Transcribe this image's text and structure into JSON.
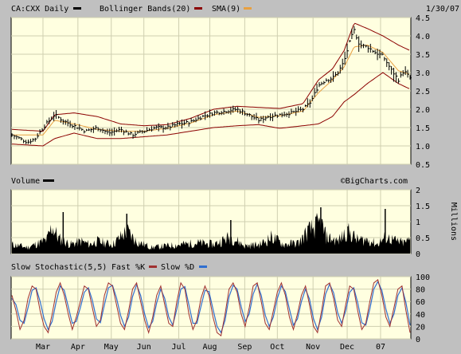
{
  "chart_data": [
    {
      "type": "candlestick",
      "panel": "price",
      "legend": {
        "symbol": "CA:CXX Daily",
        "bands": "Bollinger Bands(20)",
        "sma": "SMA(9)"
      },
      "date": "1/30/07",
      "x_labels": [
        "Mar",
        "Apr",
        "May",
        "Jun",
        "Jul",
        "Aug",
        "Sep",
        "Oct",
        "Nov",
        "Dec",
        "07"
      ],
      "y_ticks": [
        "4.5",
        "4.0",
        "3.5",
        "3.0",
        "2.5",
        "2.0",
        "1.5",
        "1.0",
        "0.5"
      ],
      "ylim": [
        0.5,
        4.5
      ],
      "grid": true,
      "colors": {
        "price": "#000000",
        "bands": "#8b0000",
        "sma": "#e8a040",
        "background": "#ffffe0"
      },
      "close_anchors": [
        [
          0,
          1.3
        ],
        [
          10,
          1.2
        ],
        [
          20,
          1.1
        ],
        [
          30,
          1.2
        ],
        [
          42,
          1.55
        ],
        [
          55,
          1.85
        ],
        [
          65,
          1.7
        ],
        [
          80,
          1.55
        ],
        [
          95,
          1.4
        ],
        [
          110,
          1.5
        ],
        [
          125,
          1.35
        ],
        [
          140,
          1.45
        ],
        [
          155,
          1.3
        ],
        [
          170,
          1.4
        ],
        [
          185,
          1.5
        ],
        [
          200,
          1.5
        ],
        [
          215,
          1.6
        ],
        [
          230,
          1.65
        ],
        [
          245,
          1.8
        ],
        [
          260,
          1.9
        ],
        [
          275,
          1.95
        ],
        [
          290,
          2.0
        ],
        [
          305,
          1.85
        ],
        [
          318,
          1.7
        ],
        [
          330,
          1.8
        ],
        [
          345,
          1.85
        ],
        [
          360,
          1.9
        ],
        [
          375,
          2.0
        ],
        [
          385,
          2.2
        ],
        [
          395,
          2.65
        ],
        [
          405,
          2.8
        ],
        [
          413,
          2.85
        ],
        [
          420,
          3.0
        ],
        [
          428,
          3.3
        ],
        [
          436,
          3.9
        ],
        [
          441,
          4.15
        ],
        [
          448,
          3.75
        ],
        [
          458,
          3.7
        ],
        [
          468,
          3.55
        ],
        [
          478,
          3.45
        ],
        [
          488,
          3.1
        ],
        [
          498,
          2.8
        ],
        [
          505,
          3.05
        ],
        [
          513,
          2.85
        ]
      ],
      "sma_anchors": [
        [
          0,
          1.3
        ],
        [
          40,
          1.3
        ],
        [
          55,
          1.7
        ],
        [
          80,
          1.6
        ],
        [
          110,
          1.45
        ],
        [
          140,
          1.4
        ],
        [
          170,
          1.4
        ],
        [
          200,
          1.48
        ],
        [
          230,
          1.62
        ],
        [
          260,
          1.85
        ],
        [
          290,
          1.95
        ],
        [
          318,
          1.78
        ],
        [
          345,
          1.82
        ],
        [
          375,
          1.95
        ],
        [
          395,
          2.45
        ],
        [
          413,
          2.8
        ],
        [
          428,
          3.15
        ],
        [
          441,
          3.7
        ],
        [
          458,
          3.75
        ],
        [
          478,
          3.55
        ],
        [
          498,
          3.05
        ],
        [
          513,
          2.95
        ]
      ],
      "upper_band_anchors": [
        [
          0,
          1.45
        ],
        [
          40,
          1.4
        ],
        [
          55,
          1.85
        ],
        [
          80,
          1.9
        ],
        [
          110,
          1.8
        ],
        [
          140,
          1.6
        ],
        [
          170,
          1.55
        ],
        [
          200,
          1.58
        ],
        [
          230,
          1.75
        ],
        [
          260,
          2.0
        ],
        [
          290,
          2.08
        ],
        [
          318,
          2.05
        ],
        [
          345,
          2.02
        ],
        [
          375,
          2.15
        ],
        [
          395,
          2.8
        ],
        [
          413,
          3.1
        ],
        [
          428,
          3.6
        ],
        [
          441,
          4.35
        ],
        [
          458,
          4.2
        ],
        [
          478,
          4.0
        ],
        [
          498,
          3.75
        ],
        [
          513,
          3.6
        ]
      ],
      "lower_band_anchors": [
        [
          0,
          1.05
        ],
        [
          40,
          1.0
        ],
        [
          55,
          1.2
        ],
        [
          80,
          1.35
        ],
        [
          110,
          1.2
        ],
        [
          140,
          1.2
        ],
        [
          170,
          1.25
        ],
        [
          200,
          1.3
        ],
        [
          230,
          1.4
        ],
        [
          260,
          1.5
        ],
        [
          290,
          1.55
        ],
        [
          318,
          1.58
        ],
        [
          345,
          1.48
        ],
        [
          375,
          1.55
        ],
        [
          395,
          1.6
        ],
        [
          413,
          1.8
        ],
        [
          428,
          2.2
        ],
        [
          441,
          2.4
        ],
        [
          458,
          2.7
        ],
        [
          478,
          3.0
        ],
        [
          498,
          2.7
        ],
        [
          513,
          2.55
        ]
      ]
    },
    {
      "type": "bar",
      "panel": "volume",
      "label": "Volume",
      "watermark": "©BigCharts.com",
      "y_ticks": [
        "2",
        "1.5",
        "1",
        "0.5",
        "0"
      ],
      "unit_label": "Millions",
      "ylim": [
        0,
        2
      ],
      "color": "#000000",
      "volume_anchors": [
        [
          0,
          0.3
        ],
        [
          20,
          0.2
        ],
        [
          45,
          0.45
        ],
        [
          52,
          0.9
        ],
        [
          60,
          0.5
        ],
        [
          75,
          0.3
        ],
        [
          90,
          0.4
        ],
        [
          100,
          0.3
        ],
        [
          110,
          0.4
        ],
        [
          130,
          0.3
        ],
        [
          148,
          0.75
        ],
        [
          160,
          0.4
        ],
        [
          180,
          0.2
        ],
        [
          200,
          0.25
        ],
        [
          220,
          0.3
        ],
        [
          240,
          0.35
        ],
        [
          260,
          0.3
        ],
        [
          282,
          0.55
        ],
        [
          300,
          0.25
        ],
        [
          320,
          0.3
        ],
        [
          335,
          0.55
        ],
        [
          350,
          0.3
        ],
        [
          370,
          0.35
        ],
        [
          380,
          0.7
        ],
        [
          398,
          1.0
        ],
        [
          405,
          0.55
        ],
        [
          420,
          0.4
        ],
        [
          432,
          0.75
        ],
        [
          445,
          0.45
        ],
        [
          460,
          0.45
        ],
        [
          470,
          0.3
        ],
        [
          482,
          0.55
        ],
        [
          495,
          0.4
        ],
        [
          505,
          0.35
        ],
        [
          513,
          0.45
        ]
      ],
      "volume_spikes": [
        [
          66,
          1.3
        ],
        [
          148,
          1.25
        ],
        [
          282,
          1.05
        ],
        [
          398,
          1.45
        ],
        [
          433,
          0.85
        ],
        [
          481,
          1.4
        ]
      ]
    },
    {
      "type": "line",
      "panel": "stochastic",
      "legend": {
        "title": "Slow Stochastic(5,5)",
        "fast": "Fast %K",
        "slow": "Slow %D"
      },
      "y_ticks": [
        "100",
        "80",
        "60",
        "40",
        "20",
        "0"
      ],
      "ylim": [
        0,
        100
      ],
      "colors": {
        "fast": "#a03030",
        "slow": "#2f6fd0"
      },
      "k_values": [
        70,
        45,
        15,
        30,
        65,
        85,
        80,
        45,
        20,
        10,
        40,
        75,
        90,
        70,
        40,
        15,
        35,
        60,
        85,
        80,
        50,
        20,
        30,
        70,
        90,
        85,
        55,
        25,
        15,
        45,
        80,
        90,
        60,
        30,
        10,
        35,
        70,
        85,
        55,
        25,
        20,
        60,
        90,
        80,
        40,
        15,
        30,
        65,
        85,
        70,
        35,
        10,
        5,
        40,
        80,
        90,
        75,
        40,
        20,
        50,
        85,
        90,
        60,
        25,
        15,
        45,
        75,
        90,
        70,
        35,
        15,
        40,
        70,
        85,
        55,
        20,
        10,
        45,
        85,
        90,
        65,
        30,
        20,
        55,
        85,
        80,
        45,
        15,
        25,
        60,
        90,
        95,
        70,
        35,
        20,
        50,
        80,
        85,
        45,
        10
      ],
      "d_values": [
        65,
        55,
        30,
        25,
        50,
        78,
        82,
        60,
        32,
        15,
        28,
        60,
        85,
        78,
        52,
        25,
        28,
        50,
        75,
        82,
        62,
        32,
        26,
        55,
        82,
        86,
        66,
        38,
        20,
        35,
        68,
        87,
        70,
        40,
        18,
        28,
        58,
        80,
        65,
        35,
        22,
        48,
        80,
        84,
        55,
        25,
        25,
        52,
        78,
        76,
        48,
        20,
        10,
        30,
        68,
        86,
        80,
        52,
        28,
        40,
        72,
        88,
        70,
        38,
        20,
        35,
        65,
        85,
        76,
        48,
        22,
        32,
        60,
        80,
        64,
        32,
        15,
        35,
        72,
        88,
        74,
        42,
        25,
        45,
        75,
        82,
        58,
        26,
        22,
        48,
        80,
        92,
        78,
        48,
        25,
        40,
        70,
        82,
        58,
        22
      ]
    }
  ]
}
